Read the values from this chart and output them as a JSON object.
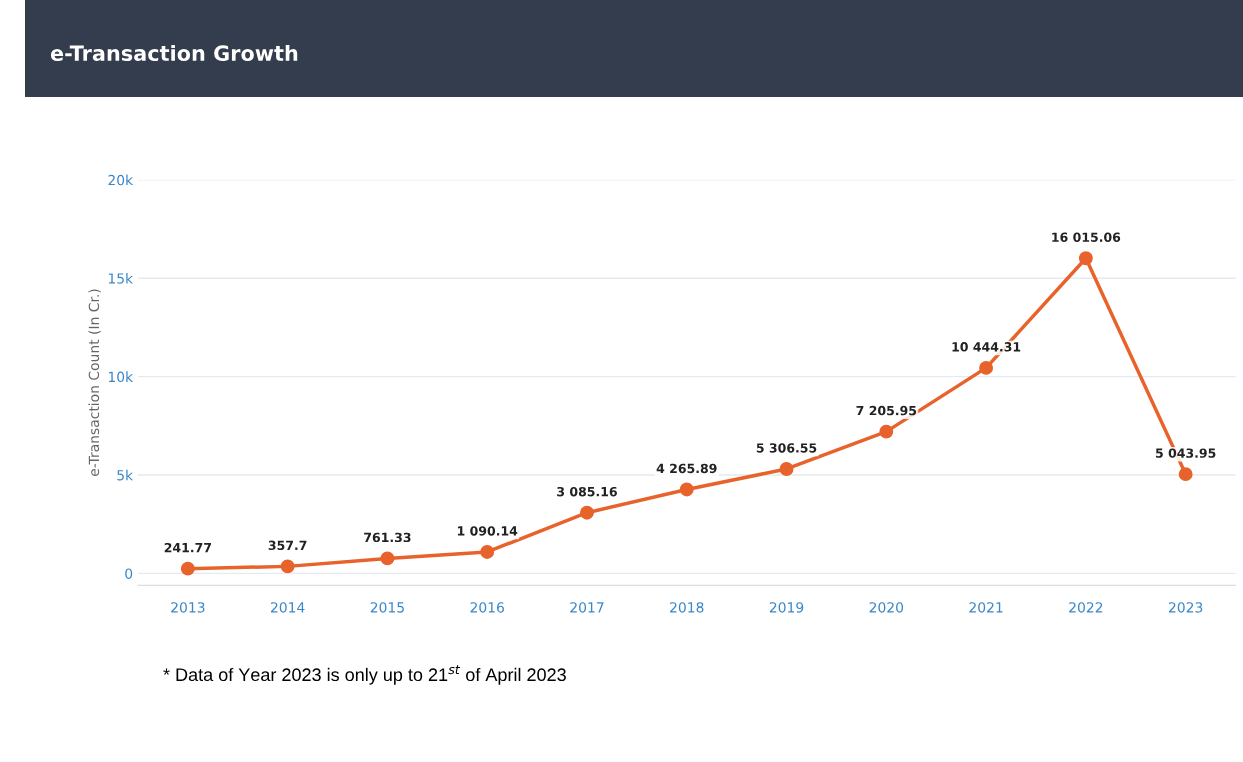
{
  "chart_data": {
    "type": "line",
    "title": "e-Transaction Growth",
    "ylabel": "e-Transaction Count (In Cr.)",
    "categories": [
      "2013",
      "2014",
      "2015",
      "2016",
      "2017",
      "2018",
      "2019",
      "2020",
      "2021",
      "2022",
      "2023"
    ],
    "values": [
      241.77,
      357.7,
      761.33,
      1090.14,
      3085.16,
      4265.89,
      5306.55,
      7205.95,
      10444.31,
      16015.06,
      5043.95
    ],
    "value_labels": [
      "241.77",
      "357.7",
      "761.33",
      "1 090.14",
      "3 085.16",
      "4 265.89",
      "5 306.55",
      "7 205.95",
      "10 444.31",
      "16 015.06",
      "5 043.95"
    ],
    "color": "#e8632b",
    "marker": "circle",
    "line_style": "solid",
    "ylim": [
      -600,
      20000
    ],
    "yticks": [
      0,
      {
        "value": 5000,
        "label": "5k"
      },
      {
        "value": 10000,
        "label": "10k"
      },
      {
        "value": 15000,
        "label": "15k"
      },
      {
        "value": 20000,
        "label": "20k"
      }
    ],
    "grid": "y",
    "legend": false,
    "annotations": [
      "* Data of Year 2023 is only up to 21$^{st}$ of April 2023"
    ]
  }
}
